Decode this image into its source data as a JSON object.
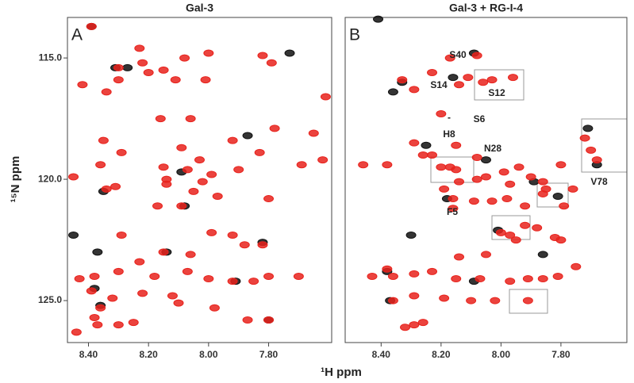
{
  "x_label": "¹H  ppm",
  "y_label": "¹⁵N  ppm",
  "chart_data": [
    {
      "type": "scatter",
      "title": "Gal-3",
      "panel": "A",
      "xlim": [
        8.47,
        7.59
      ],
      "ylim": [
        113.33,
        126.73
      ],
      "xticks": [
        {
          "value": 8.4,
          "label": "8.40"
        },
        {
          "value": 8.2,
          "label": "8.20"
        },
        {
          "value": 8.0,
          "label": "8.00"
        },
        {
          "value": 7.8,
          "label": "7.80"
        }
      ],
      "yticks": [
        {
          "value": 115,
          "label": "115.0"
        },
        {
          "value": 120,
          "label": "120.0"
        },
        {
          "value": 125,
          "label": "125.0"
        }
      ],
      "series": [
        {
          "color": "#111111",
          "x": [
            8.39,
            8.27,
            8.31,
            8.09,
            7.87,
            7.73,
            8.35,
            8.08,
            8.14,
            8.38,
            8.36,
            8.45,
            8.37,
            7.8,
            7.91,
            7.82
          ],
          "y": [
            113.7,
            115.4,
            115.4,
            119.7,
            118.2,
            114.8,
            120.5,
            121.1,
            123.0,
            124.5,
            125.2,
            122.3,
            123.0,
            125.8,
            124.2,
            122.6
          ]
        },
        {
          "color": "#e8221c",
          "x": [
            8.39,
            8.23,
            8.3,
            8.2,
            8.08,
            8.0,
            7.82,
            7.79,
            8.22,
            8.15,
            8.42,
            8.34,
            8.3,
            8.01,
            8.11,
            7.61,
            8.16,
            8.06,
            7.78,
            7.65,
            7.92,
            8.35,
            8.29,
            8.09,
            7.83,
            8.03,
            7.69,
            7.62,
            8.36,
            8.45,
            8.15,
            8.07,
            7.99,
            7.9,
            8.31,
            8.34,
            8.14,
            8.05,
            7.97,
            8.09,
            8.17,
            7.8,
            8.14,
            8.02,
            8.29,
            7.99,
            7.92,
            7.88,
            7.82,
            8.06,
            8.15,
            8.23,
            8.38,
            8.3,
            8.43,
            8.18,
            8.07,
            8.0,
            7.92,
            7.85,
            7.8,
            7.7,
            8.39,
            8.32,
            8.22,
            8.12,
            8.36,
            8.3,
            8.25,
            8.37,
            8.1,
            7.98,
            7.87,
            7.8,
            8.44,
            8.38
          ],
          "y": [
            113.7,
            114.6,
            115.4,
            115.6,
            115.0,
            114.8,
            114.9,
            115.2,
            115.2,
            115.5,
            116.1,
            116.4,
            115.9,
            115.9,
            115.9,
            116.6,
            117.5,
            117.5,
            117.9,
            118.1,
            118.4,
            118.4,
            118.9,
            118.7,
            118.9,
            119.2,
            119.4,
            119.2,
            119.4,
            119.9,
            119.5,
            119.6,
            119.8,
            119.6,
            120.3,
            120.4,
            120.2,
            120.5,
            120.7,
            121.1,
            121.1,
            120.8,
            120.0,
            120.1,
            122.3,
            122.2,
            122.3,
            122.7,
            122.7,
            123.1,
            123.0,
            123.4,
            124.0,
            123.8,
            124.1,
            124.0,
            123.8,
            124.1,
            124.2,
            124.2,
            124.0,
            124.0,
            124.6,
            124.9,
            124.7,
            124.8,
            125.3,
            126.0,
            125.9,
            126.0,
            125.1,
            125.3,
            125.8,
            125.8,
            126.3,
            125.7
          ]
        }
      ]
    },
    {
      "type": "scatter",
      "title": "Gal-3 + RG-I-4",
      "panel": "B",
      "xlim": [
        8.52,
        7.58
      ],
      "ylim": [
        113.33,
        126.73
      ],
      "xticks": [
        {
          "value": 8.4,
          "label": "8.40"
        },
        {
          "value": 8.2,
          "label": "8.20"
        },
        {
          "value": 8.0,
          "label": "8.00"
        },
        {
          "value": 7.8,
          "label": "7.80"
        }
      ],
      "annotations": [
        "S40",
        "S14",
        "S12",
        "-",
        "S6",
        "H8",
        "N28",
        "F5",
        "V78"
      ],
      "series": [
        {
          "color": "#111111",
          "x": [
            8.41,
            8.36,
            8.33,
            8.16,
            8.09,
            7.81,
            8.01,
            7.68,
            7.71,
            8.3,
            8.09,
            7.86,
            8.25,
            8.18,
            7.89,
            8.05,
            8.38,
            8.37
          ],
          "y": [
            113.4,
            116.4,
            116.0,
            115.8,
            114.8,
            120.7,
            122.1,
            119.4,
            117.9,
            122.3,
            124.2,
            123.1,
            118.6,
            120.8,
            120.1,
            119.2,
            123.8,
            125.0
          ]
        },
        {
          "color": "#e8221c",
          "x": [
            8.33,
            8.29,
            8.23,
            8.17,
            8.14,
            8.06,
            8.03,
            7.96,
            8.08,
            8.11,
            8.2,
            8.15,
            8.08,
            8.29,
            8.26,
            8.23,
            8.46,
            8.38,
            8.2,
            8.15,
            8.17,
            8.14,
            8.08,
            8.05,
            7.99,
            7.94,
            7.9,
            7.86,
            7.97,
            7.85,
            7.76,
            7.72,
            7.7,
            7.68,
            7.8,
            8.16,
            8.09,
            8.03,
            7.98,
            8.19,
            8.16,
            7.86,
            7.79,
            7.92,
            7.92,
            7.88,
            7.97,
            8.0,
            7.82,
            7.8,
            8.05,
            7.95,
            8.14,
            8.43,
            8.36,
            8.38,
            8.29,
            8.23,
            8.15,
            8.07,
            7.91,
            7.97,
            7.86,
            7.81,
            7.75,
            8.36,
            8.29,
            8.19,
            8.1,
            8.02,
            7.91,
            8.32,
            8.29,
            8.26
          ],
          "y": [
            115.9,
            116.3,
            115.6,
            115.0,
            116.1,
            116.0,
            115.9,
            115.8,
            114.9,
            115.8,
            117.3,
            118.6,
            119.1,
            118.5,
            119.0,
            119.0,
            119.4,
            119.4,
            119.5,
            119.6,
            119.5,
            120.1,
            120.0,
            119.9,
            119.7,
            119.5,
            119.9,
            120.1,
            120.2,
            120.4,
            120.4,
            118.3,
            118.8,
            119.2,
            119.4,
            120.8,
            120.9,
            120.9,
            120.8,
            120.4,
            121.2,
            120.6,
            121.1,
            121.1,
            121.9,
            122.0,
            122.3,
            122.2,
            122.4,
            122.5,
            123.1,
            122.5,
            123.2,
            124.0,
            124.0,
            123.7,
            123.9,
            123.8,
            124.1,
            124.1,
            124.1,
            124.2,
            124.1,
            124.0,
            123.6,
            125.0,
            124.8,
            124.9,
            125.0,
            125.0,
            125.0,
            126.1,
            126.0,
            125.9
          ]
        }
      ]
    }
  ]
}
